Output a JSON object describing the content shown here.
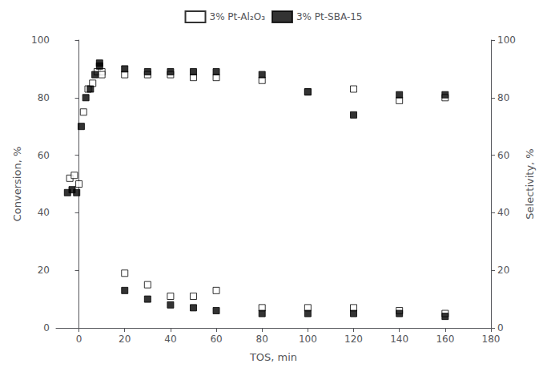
{
  "chart_data": {
    "type": "scatter",
    "x_label": "TOS, min",
    "y_label": "Conversion, %",
    "y2_label": "Selectivity, %",
    "xlim": [
      -10,
      180
    ],
    "xticks": [
      0,
      20,
      40,
      60,
      80,
      100,
      120,
      140,
      160,
      180
    ],
    "ylim": [
      0,
      100
    ],
    "yticks": [
      0,
      20,
      40,
      60,
      80,
      100
    ],
    "y2lim": [
      0,
      100
    ],
    "y2ticks": [
      0,
      20,
      40,
      60,
      80,
      100
    ],
    "grid": false,
    "legend": "top",
    "marker": "square",
    "series": [
      {
        "name": "3% Pt-Al₂O₃",
        "color": "#ffffff",
        "axis": "y",
        "x": [
          -4,
          -2,
          0,
          2,
          4,
          6,
          8,
          10,
          20,
          30,
          40,
          50,
          60,
          80,
          100,
          120,
          140,
          160
        ],
        "values": [
          52,
          53,
          50,
          75,
          83,
          85,
          89,
          89,
          19,
          15,
          11,
          11,
          13,
          7,
          7,
          7,
          6,
          5
        ]
      },
      {
        "name": "3% Pt-SBA-15",
        "color": "#000000",
        "axis": "y",
        "x": [
          -5,
          -3,
          -1,
          1,
          3,
          5,
          7,
          9,
          20,
          30,
          40,
          50,
          60,
          80,
          100,
          120,
          140,
          160
        ],
        "values": [
          47,
          48,
          47,
          70,
          80,
          83,
          88,
          92,
          13,
          10,
          8,
          7,
          6,
          5,
          5,
          5,
          5,
          4
        ]
      },
      {
        "name": "3% Pt-Al₂O₃",
        "color": "#ffffff",
        "axis": "y2",
        "x": [
          10,
          20,
          30,
          40,
          50,
          60,
          80,
          100,
          120,
          140,
          160
        ],
        "values": [
          88,
          88,
          88,
          88,
          87,
          87,
          86,
          82,
          83,
          79,
          80
        ]
      },
      {
        "name": "3% Pt-SBA-15",
        "color": "#000000",
        "axis": "y2",
        "x": [
          9,
          20,
          30,
          40,
          50,
          60,
          80,
          100,
          120,
          140,
          160
        ],
        "values": [
          91,
          90,
          89,
          89,
          89,
          89,
          88,
          82,
          74,
          81,
          81
        ]
      }
    ]
  }
}
